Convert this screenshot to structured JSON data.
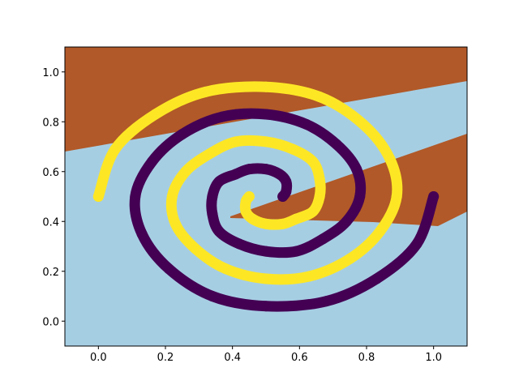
{
  "chart_data": {
    "type": "scatter",
    "xlim": [
      -0.1,
      1.1
    ],
    "ylim": [
      -0.1,
      1.1
    ],
    "xticks": [
      {
        "value": 0,
        "label": "0.0"
      },
      0.2,
      0.4,
      0.6,
      0.8,
      {
        "value": 1,
        "label": "1.0"
      }
    ],
    "yticks": [
      {
        "value": 0,
        "label": "0.0"
      },
      0.2,
      0.4,
      0.6,
      0.8,
      {
        "value": 1,
        "label": "1.0"
      }
    ],
    "grid": false,
    "series": [
      {
        "color": "#fde725",
        "x": [
          0,
          0.05,
          0.17,
          0.32,
          0.5,
          0.66,
          0.79,
          0.87,
          0.89,
          0.84,
          0.75,
          0.63,
          0.5,
          0.38,
          0.29,
          0.23,
          0.22,
          0.26,
          0.33,
          0.41,
          0.5,
          0.58,
          0.64,
          0.66,
          0.66,
          0.64,
          0.59,
          0.55,
          0.5,
          0.46,
          0.44,
          0.44,
          0.45
        ],
        "values": [
          0.5,
          0.69,
          0.83,
          0.92,
          0.94,
          0.9,
          0.79,
          0.65,
          0.5,
          0.36,
          0.25,
          0.18,
          0.17,
          0.21,
          0.29,
          0.39,
          0.5,
          0.6,
          0.67,
          0.72,
          0.72,
          0.69,
          0.64,
          0.57,
          0.5,
          0.44,
          0.41,
          0.39,
          0.39,
          0.41,
          0.44,
          0.48,
          0.5
        ]
      },
      {
        "color": "#440154",
        "x": [
          1,
          0.95,
          0.83,
          0.68,
          0.5,
          0.34,
          0.21,
          0.13,
          0.11,
          0.16,
          0.25,
          0.37,
          0.5,
          0.62,
          0.71,
          0.77,
          0.78,
          0.74,
          0.67,
          0.59,
          0.5,
          0.42,
          0.36,
          0.34,
          0.34,
          0.36,
          0.41,
          0.45,
          0.5,
          0.54,
          0.56,
          0.56,
          0.55
        ],
        "values": [
          0.5,
          0.31,
          0.17,
          0.08,
          0.06,
          0.1,
          0.21,
          0.35,
          0.5,
          0.64,
          0.75,
          0.82,
          0.83,
          0.79,
          0.71,
          0.61,
          0.5,
          0.4,
          0.33,
          0.28,
          0.28,
          0.31,
          0.36,
          0.43,
          0.5,
          0.56,
          0.59,
          0.61,
          0.61,
          0.59,
          0.56,
          0.52,
          0.5
        ]
      }
    ]
  }
}
